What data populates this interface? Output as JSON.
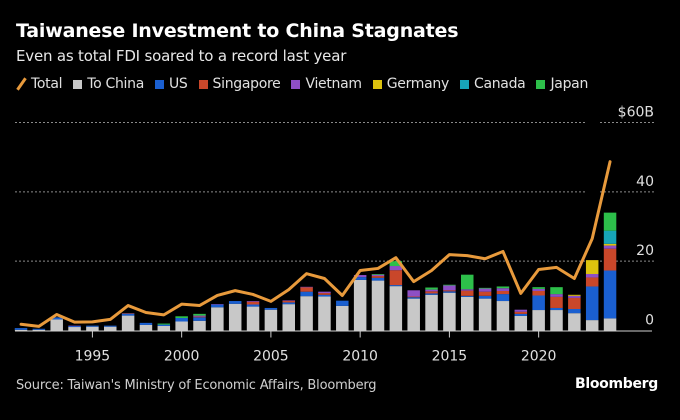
{
  "header": {
    "title": "Taiwanese Investment to China Stagnates",
    "subtitle": "Even as total FDI soared to a record last year"
  },
  "footer": {
    "source": "Source: Taiwan's Ministry of Economic Affairs, Bloomberg",
    "brand": "Bloomberg"
  },
  "chart_data": {
    "type": "bar",
    "subtype": "stacked-bar-with-line",
    "title": "Taiwanese Investment to China Stagnates",
    "subtitle": "Even as total FDI soared to a record last year",
    "xlabel": "",
    "ylabel": "",
    "ylim": [
      0,
      60
    ],
    "y_ticks": [
      {
        "value": 0,
        "label": "0"
      },
      {
        "value": 20,
        "label": "20"
      },
      {
        "value": 40,
        "label": "40"
      },
      {
        "value": 60,
        "label": "$60B"
      }
    ],
    "x_ticks": [
      {
        "value": 1995,
        "label": "1995"
      },
      {
        "value": 2000,
        "label": "2000"
      },
      {
        "value": 2005,
        "label": "2005"
      },
      {
        "value": 2010,
        "label": "2010"
      },
      {
        "value": 2015,
        "label": "2015"
      },
      {
        "value": 2020,
        "label": "2020"
      }
    ],
    "grid": true,
    "legend_position": "top-left",
    "x": [
      1991,
      1992,
      1993,
      1994,
      1995,
      1996,
      1997,
      1998,
      1999,
      2000,
      2001,
      2002,
      2003,
      2004,
      2005,
      2006,
      2007,
      2008,
      2009,
      2010,
      2011,
      2012,
      2013,
      2014,
      2015,
      2016,
      2017,
      2018,
      2019,
      2020,
      2021,
      2022,
      2023,
      2024
    ],
    "line": {
      "name": "Total",
      "color": "#e89a3c",
      "values": [
        1.8,
        1.2,
        4.6,
        2.4,
        2.5,
        3.2,
        7.2,
        5.2,
        4.5,
        7.6,
        7.2,
        10.1,
        11.5,
        10.4,
        8.4,
        11.8,
        16.4,
        15.0,
        10.1,
        17.3,
        17.9,
        21.0,
        14.1,
        17.3,
        21.9,
        21.6,
        20.7,
        22.8,
        10.7,
        17.6,
        18.2,
        15.0,
        26.5,
        48.7
      ]
    },
    "series": [
      {
        "name": "To China",
        "color": "#c8c8c8",
        "values": [
          0.2,
          0.2,
          3.2,
          1.0,
          1.1,
          1.1,
          4.3,
          1.6,
          1.3,
          2.6,
          2.8,
          6.7,
          7.7,
          6.9,
          6.0,
          7.6,
          9.9,
          9.8,
          7.1,
          14.6,
          14.4,
          12.8,
          9.2,
          10.3,
          10.9,
          9.7,
          9.2,
          8.5,
          4.2,
          5.9,
          5.9,
          5.0,
          3.0,
          3.5
        ]
      },
      {
        "name": "US",
        "color": "#1a5fd0",
        "values": [
          0.5,
          0.3,
          0.6,
          0.3,
          0.3,
          0.3,
          0.6,
          0.6,
          0.4,
          1.0,
          1.0,
          0.8,
          0.8,
          0.6,
          0.5,
          0.5,
          1.3,
          0.5,
          1.5,
          0.8,
          0.8,
          0.3,
          0.4,
          0.4,
          0.4,
          0.3,
          0.8,
          2.0,
          0.6,
          4.2,
          0.6,
          1.2,
          9.7,
          13.8
        ]
      },
      {
        "name": "Singapore",
        "color": "#c9472a",
        "values": [
          0,
          0,
          0,
          0,
          0,
          0,
          0.1,
          0,
          0,
          0,
          0.2,
          0,
          0,
          0.8,
          0,
          0.5,
          1.3,
          0.5,
          0,
          0,
          0.5,
          4.3,
          0.2,
          0.6,
          0.3,
          1.5,
          1.2,
          0.9,
          0.6,
          1.3,
          3.2,
          3.2,
          2.6,
          6.3
        ]
      },
      {
        "name": "Vietnam",
        "color": "#8e4fc5",
        "values": [
          0,
          0,
          0,
          0.1,
          0,
          0,
          0,
          0,
          0,
          0,
          0.3,
          0.1,
          0,
          0.2,
          0,
          0.1,
          0.1,
          0.4,
          0,
          0.6,
          0.4,
          1.2,
          1.8,
          0.5,
          1.4,
          0.4,
          0.9,
          0.8,
          0.6,
          0.6,
          0.8,
          0.6,
          1.0,
          0.9
        ]
      },
      {
        "name": "Germany",
        "color": "#dcc20e",
        "values": [
          0,
          0,
          0,
          0,
          0,
          0,
          0,
          0,
          0,
          0,
          0,
          0,
          0,
          0,
          0,
          0,
          0,
          0,
          0,
          0,
          0,
          0,
          0,
          0,
          0,
          0,
          0,
          0,
          0,
          0,
          0,
          0.3,
          4.0,
          0.5
        ]
      },
      {
        "name": "Canada",
        "color": "#17a5b8",
        "values": [
          0,
          0,
          0,
          0,
          0,
          0,
          0,
          0,
          0,
          0,
          0,
          0,
          0,
          0,
          0,
          0,
          0,
          0,
          0,
          0,
          0,
          0,
          0,
          0,
          0,
          0,
          0,
          0,
          0,
          0,
          0,
          0,
          0,
          3.8
        ]
      },
      {
        "name": "Japan",
        "color": "#2dbf4a",
        "values": [
          0,
          0,
          0,
          0,
          0,
          0,
          0,
          0,
          0.3,
          0.5,
          0.5,
          0,
          0,
          0,
          0,
          0,
          0,
          0,
          0,
          0,
          0.2,
          1.4,
          0,
          0.6,
          0.2,
          4.2,
          0.2,
          0.5,
          0,
          0.5,
          2.0,
          0,
          0,
          5.2
        ]
      }
    ]
  }
}
